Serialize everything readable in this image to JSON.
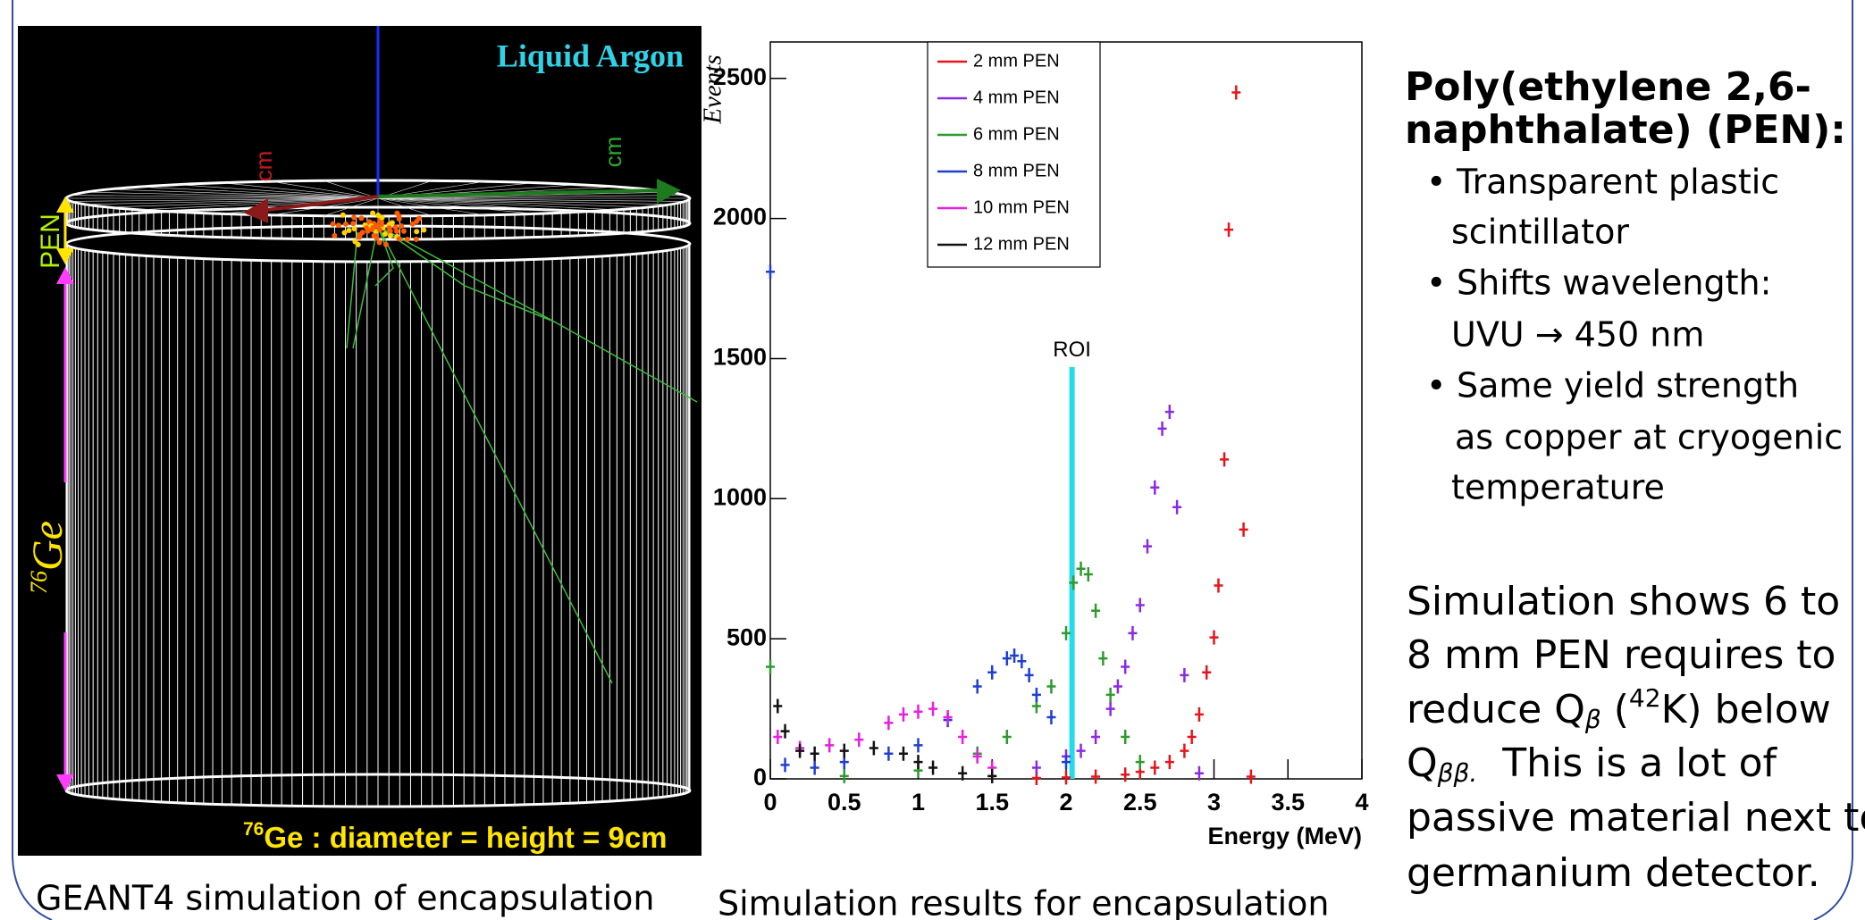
{
  "render": {
    "medium_label": "Liquid Argon",
    "layer_label": "PEN",
    "crystal_label": {
      "mass": "76",
      "element": "Ge"
    },
    "axis_units": [
      "cm",
      "cm"
    ],
    "dimension_note": {
      "mass": "76",
      "text": "Ge : diameter = height = 9cm"
    },
    "caption": "GEANT4 simulation of encapsulation"
  },
  "chart_data": {
    "type": "scatter",
    "y_label": "Events",
    "x_label": "Energy (MeV)",
    "xlim": [
      0,
      4
    ],
    "xticks": [
      0,
      0.5,
      1,
      1.5,
      2,
      2.5,
      3,
      3.5,
      4
    ],
    "ylim": [
      0,
      2630
    ],
    "yticks": [
      0,
      500,
      1000,
      1500,
      2000,
      2500
    ],
    "legend": "top",
    "roi": {
      "label": "ROI",
      "x": 2.04,
      "height": 1470,
      "color": "#22dde8"
    },
    "series": [
      {
        "name": "2 mm PEN",
        "color": "#e8141c",
        "x": [
          1.8,
          2.0,
          2.2,
          2.4,
          2.5,
          2.6,
          2.7,
          2.8,
          2.85,
          2.9,
          2.95,
          3.0,
          3.03,
          3.07,
          3.1,
          3.15,
          3.2,
          3.25
        ],
        "values": [
          3,
          5,
          8,
          15,
          25,
          40,
          60,
          100,
          150,
          230,
          380,
          505,
          690,
          1140,
          1960,
          2450,
          890,
          8
        ]
      },
      {
        "name": "4 mm PEN",
        "color": "#8a2be2",
        "x": [
          1.5,
          1.8,
          2.0,
          2.1,
          2.2,
          2.3,
          2.35,
          2.4,
          2.45,
          2.5,
          2.55,
          2.6,
          2.65,
          2.7,
          2.75,
          2.8,
          2.9
        ],
        "values": [
          10,
          40,
          80,
          100,
          150,
          250,
          330,
          400,
          520,
          620,
          830,
          1040,
          1250,
          1310,
          970,
          370,
          20
        ]
      },
      {
        "name": "6 mm PEN",
        "color": "#2e9a2e",
        "x": [
          0,
          0.5,
          1.0,
          1.4,
          1.6,
          1.8,
          1.9,
          2.0,
          2.05,
          2.1,
          2.15,
          2.2,
          2.25,
          2.3,
          2.4,
          2.5
        ],
        "values": [
          400,
          10,
          30,
          90,
          150,
          260,
          330,
          520,
          700,
          750,
          730,
          600,
          430,
          300,
          150,
          60
        ]
      },
      {
        "name": "8 mm PEN",
        "color": "#1f3fd0",
        "x": [
          0,
          0.1,
          0.3,
          0.5,
          0.8,
          1.0,
          1.2,
          1.4,
          1.5,
          1.6,
          1.65,
          1.7,
          1.75,
          1.8,
          1.9,
          2.0
        ],
        "values": [
          1810,
          50,
          40,
          60,
          90,
          120,
          210,
          330,
          380,
          430,
          440,
          420,
          370,
          300,
          220,
          60
        ]
      },
      {
        "name": "10 mm PEN",
        "color": "#e81ee0",
        "x": [
          0.05,
          0.2,
          0.4,
          0.6,
          0.8,
          0.9,
          1.0,
          1.1,
          1.2,
          1.3,
          1.4,
          1.5
        ],
        "values": [
          150,
          110,
          120,
          140,
          200,
          230,
          240,
          250,
          220,
          150,
          80,
          40
        ]
      },
      {
        "name": "12 mm PEN",
        "color": "#111111",
        "x": [
          0.05,
          0.1,
          0.2,
          0.3,
          0.5,
          0.7,
          0.9,
          1.0,
          1.1,
          1.3,
          1.5
        ],
        "values": [
          260,
          170,
          100,
          90,
          100,
          110,
          90,
          60,
          40,
          20,
          10
        ]
      }
    ],
    "caption": "Simulation results for encapsulation"
  },
  "notes": {
    "heading": [
      "Poly(ethylene 2,6-",
      "naphthalate) (PEN):"
    ],
    "bullets": [
      [
        "Transparent plastic",
        "scintillator"
      ],
      [
        "Shifts wavelength:",
        "UVU → 450 nm"
      ],
      [
        "Same yield strength",
        "as copper at cryogenic",
        "temperature"
      ]
    ],
    "bullet_symbol": "•",
    "paragraph": [
      [
        "Simulation shows 6 to"
      ],
      [
        "8 mm PEN requires to"
      ],
      [
        "reduce Q",
        "β",
        " (",
        "42",
        "K) below"
      ],
      [
        "Q",
        "ββ.",
        "  This is a lot of"
      ],
      [
        "passive material next to"
      ],
      [
        "germanium detector."
      ]
    ]
  }
}
